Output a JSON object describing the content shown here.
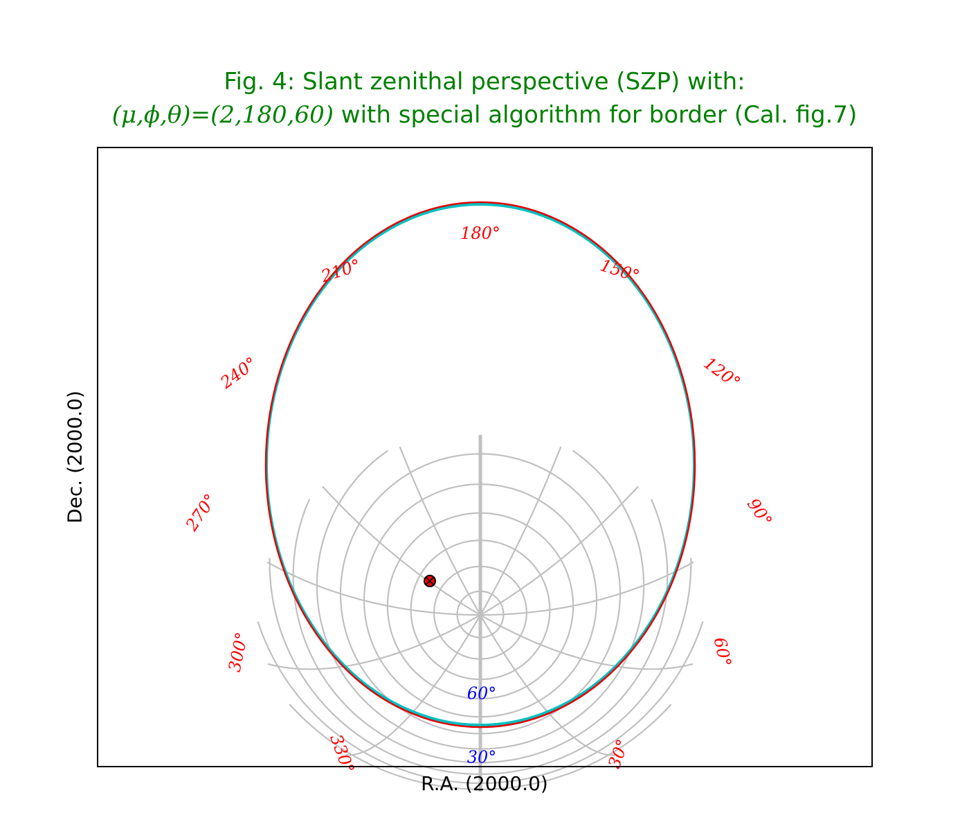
{
  "figure": {
    "title_line1": "Fig. 4: Slant zenithal perspective (SZP) with:",
    "title_line2_math": "(μ,ϕ,θ)=(2,180,60)",
    "title_line2_text": " with special algorithm for border (Cal. fig.7)",
    "xlabel": "R.A. (2000.0)",
    "ylabel": "Dec. (2000.0)"
  },
  "colors": {
    "title": "#008000",
    "grid": "#c0c0c0",
    "border_outer": "#e60000",
    "border_inner": "#00bfbf",
    "ra_labels": "#ff0000",
    "dec_labels": "#0000ff",
    "marker_fill": "#ff0000",
    "marker_edge": "#000000"
  },
  "chart_data": {
    "type": "scatter",
    "projection": "SZP",
    "parameters": {
      "mu": 2,
      "phi": 180,
      "theta": 60
    },
    "ra_tick_labels": [
      "30°",
      "60°",
      "90°",
      "120°",
      "150°",
      "180°",
      "210°",
      "240°",
      "270°",
      "300°",
      "330°"
    ],
    "dec_tick_labels": [
      "30°",
      "60°"
    ],
    "grid": true,
    "marked_points": 1
  }
}
